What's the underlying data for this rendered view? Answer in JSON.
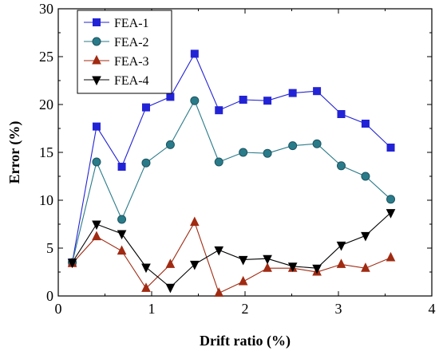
{
  "chart_data": {
    "type": "line",
    "title": "",
    "xlabel": "Drift ratio (%)",
    "ylabel": "Error (%)",
    "xlim": [
      0,
      4
    ],
    "ylim": [
      0,
      30
    ],
    "xticks": [
      0,
      1,
      2,
      3,
      4
    ],
    "yticks": [
      0,
      5,
      10,
      15,
      20,
      25,
      30
    ],
    "grid": false,
    "legend_position": "top-left",
    "x": [
      0.15,
      0.41,
      0.68,
      0.94,
      1.2,
      1.46,
      1.72,
      1.98,
      2.24,
      2.51,
      2.77,
      3.03,
      3.29,
      3.56
    ],
    "series": [
      {
        "name": "FEA-1",
        "color": "#2323d6",
        "marker": "square",
        "values": [
          3.5,
          17.7,
          13.5,
          19.7,
          20.8,
          25.3,
          19.4,
          20.5,
          20.4,
          21.2,
          21.4,
          19.0,
          18.0,
          15.5
        ]
      },
      {
        "name": "FEA-2",
        "color": "#2a7b8a",
        "marker": "circle",
        "values": [
          3.5,
          14.0,
          8.0,
          13.9,
          15.8,
          20.4,
          14.0,
          15.0,
          14.9,
          15.7,
          15.9,
          13.6,
          12.5,
          10.1
        ]
      },
      {
        "name": "FEA-3",
        "color": "#a02a12",
        "marker": "triangle-up",
        "values": [
          3.4,
          6.2,
          4.7,
          0.8,
          3.3,
          7.7,
          0.3,
          1.5,
          2.9,
          2.9,
          2.5,
          3.3,
          2.9,
          4.0
        ]
      },
      {
        "name": "FEA-4",
        "color": "#000000",
        "marker": "triangle-down",
        "values": [
          3.5,
          7.5,
          6.5,
          3.0,
          0.9,
          3.3,
          4.8,
          3.8,
          3.9,
          3.1,
          2.9,
          5.3,
          6.3,
          8.7
        ]
      }
    ]
  }
}
